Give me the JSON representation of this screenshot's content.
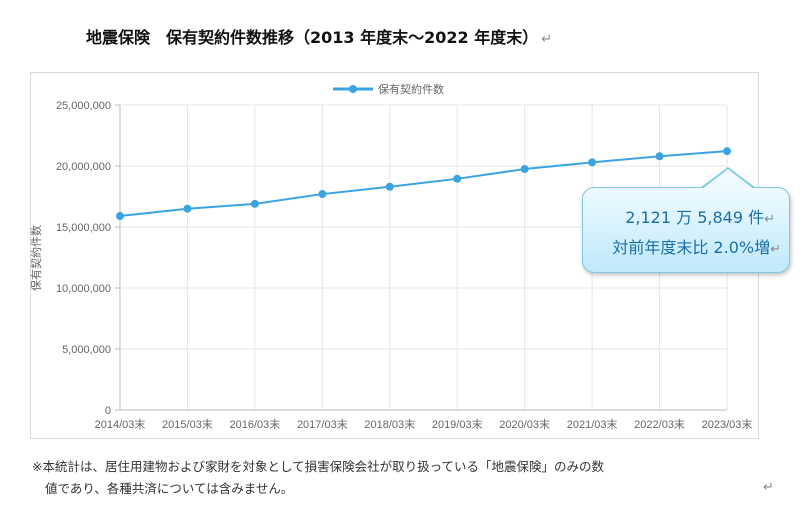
{
  "title": "地震保険　保有契約件数推移（2013 年度末～2022 年度末）",
  "return_mark": "↵",
  "chart_data": {
    "type": "line",
    "legend": "保有契約件数",
    "legend_position": "top-center",
    "ylabel": "保有契約件数",
    "xlabel": "",
    "categories": [
      "2014/03末",
      "2015/03末",
      "2016/03末",
      "2017/03末",
      "2018/03末",
      "2019/03末",
      "2020/03末",
      "2021/03末",
      "2022/03末",
      "2023/03末"
    ],
    "values": [
      15900000,
      16500000,
      16900000,
      17700000,
      18300000,
      18950000,
      19750000,
      20300000,
      20800000,
      21215849
    ],
    "ylim": [
      0,
      25000000
    ],
    "yticks": [
      "0",
      "5,000,000",
      "10,000,000",
      "15,000,000",
      "20,000,000",
      "25,000,000"
    ],
    "grid": true,
    "color": "#3ba3e0"
  },
  "callout": {
    "line1": "2,121 万 5,849 件",
    "line2": "対前年度末比 2.0%増"
  },
  "footnote": {
    "line1": "※本統計は、居住用建物および家財を対象として損害保険会社が取り扱っている「地震保険」のみの数",
    "line2": "値であり、各種共済については含みません。"
  }
}
